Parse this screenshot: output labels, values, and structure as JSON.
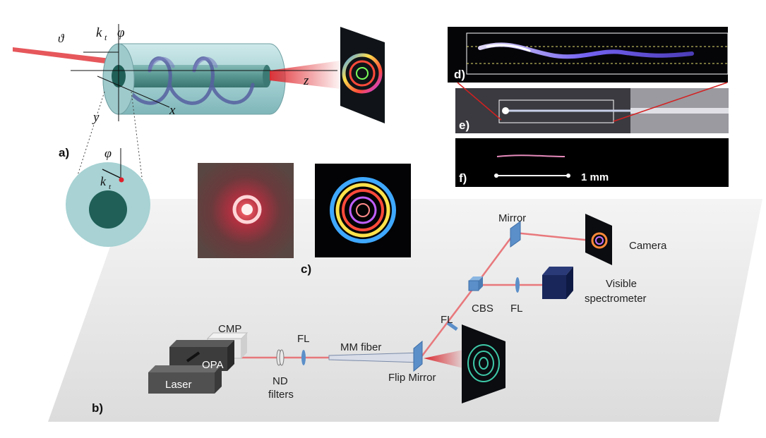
{
  "panels": {
    "a": "a)",
    "b": "b)",
    "c": "c)",
    "d": "d)",
    "e": "e)",
    "f": "f)"
  },
  "symbols": {
    "theta": "ϑ",
    "k": "k",
    "t_sub": "t",
    "phi": "φ",
    "z": "z",
    "x": "x",
    "y": "y"
  },
  "setup": {
    "cmp": "CMP",
    "opa": "OPA",
    "laser": "Laser",
    "nd_line1": "ND",
    "nd_line2": "filters",
    "fl_1": "FL",
    "mm_fiber": "MM fiber",
    "flip_mirror": "Flip Mirror",
    "fl_2": "FL",
    "cbs": "CBS",
    "fl_3": "FL",
    "mirror": "Mirror",
    "camera": "Camera",
    "spec_line1": "Visible",
    "spec_line2": "spectrometer"
  },
  "scale_bar": "1 mm",
  "colors": {
    "beam": "#e0303a",
    "fiber_cladding": "#a8d4d6",
    "fiber_core": "#1f5f57",
    "helix": "#5a5fa0",
    "optic_blue": "#5b8fc9",
    "floor": "#ececec"
  }
}
